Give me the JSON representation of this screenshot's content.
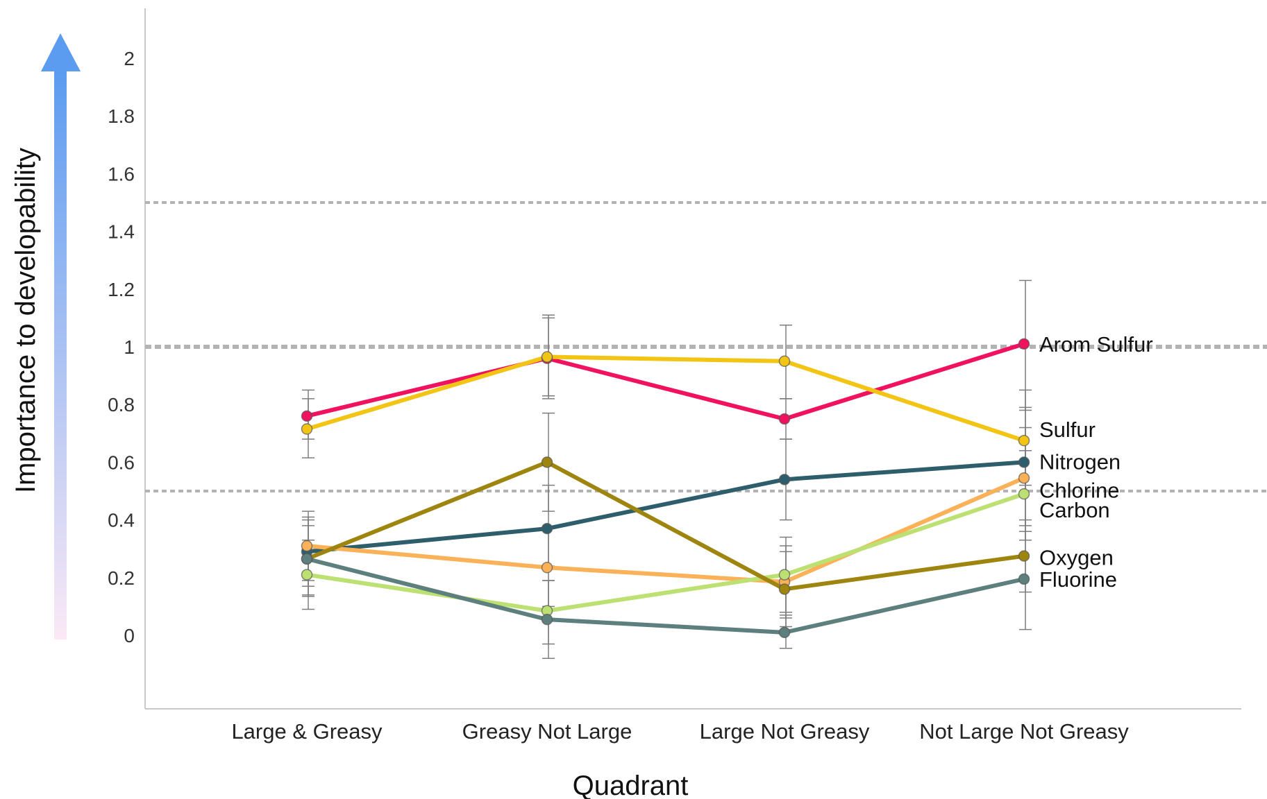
{
  "chart_data": {
    "type": "line",
    "xlabel": "Quadrant",
    "ylabel": "Importance to developability",
    "categories": [
      "Large & Greasy",
      "Greasy Not Large",
      "Large Not Greasy",
      "Not Large Not Greasy"
    ],
    "ylim": [
      -0.25,
      2.18
    ],
    "yticks": [
      0,
      0.2,
      0.4,
      0.6,
      0.8,
      1,
      1.2,
      1.4,
      1.6,
      1.8,
      2
    ],
    "ytick_labels": [
      "0",
      "0.2",
      "0.4",
      "0.6",
      "0.8",
      "1",
      "1.2",
      "1.4",
      "1.6",
      "1.8",
      "2"
    ],
    "reference_lines": [
      0.5,
      1.0,
      1.5
    ],
    "grid": false,
    "legend": "direct labels at right end of each line",
    "series": [
      {
        "name": "Arom Sulfur",
        "color": "#f0125f",
        "values": [
          0.76,
          0.96,
          0.75,
          1.01
        ],
        "err_low": [
          0.68,
          0.82,
          0.68,
          0.78
        ],
        "err_high": [
          0.85,
          1.1,
          0.82,
          1.23
        ]
      },
      {
        "name": "Sulfur",
        "color": "#f2c414",
        "values": [
          0.715,
          0.965,
          0.95,
          0.675
        ],
        "err_low": [
          0.615,
          0.83,
          0.82,
          0.52
        ],
        "err_high": [
          0.82,
          1.11,
          1.075,
          0.85
        ]
      },
      {
        "name": "Nitrogen",
        "color": "#2e5e6c",
        "values": [
          0.29,
          0.37,
          0.54,
          0.6
        ],
        "err_low": [
          0.17,
          0.24,
          0.4,
          0.38
        ],
        "err_high": [
          0.41,
          0.52,
          0.68,
          0.79
        ]
      },
      {
        "name": "Chlorine",
        "color": "#fbb157",
        "values": [
          0.31,
          0.235,
          0.185,
          0.545
        ],
        "err_low": [
          0.19,
          0.1,
          0.06,
          0.36
        ],
        "err_high": [
          0.43,
          0.37,
          0.31,
          0.72
        ]
      },
      {
        "name": "Carbon",
        "color": "#bde072",
        "values": [
          0.21,
          0.085,
          0.21,
          0.49
        ],
        "err_low": [
          0.09,
          -0.03,
          0.08,
          0.33
        ],
        "err_high": [
          0.33,
          0.19,
          0.34,
          0.64
        ]
      },
      {
        "name": "Oxygen",
        "color": "#9e8510",
        "values": [
          0.265,
          0.6,
          0.16,
          0.275
        ],
        "err_low": [
          0.14,
          0.43,
          0.03,
          0.15
        ],
        "err_high": [
          0.38,
          0.77,
          0.29,
          0.4
        ]
      },
      {
        "name": "Fluorine",
        "color": "#5d7f7d",
        "values": [
          0.265,
          0.055,
          0.01,
          0.195
        ],
        "err_low": [
          0.135,
          -0.08,
          -0.045,
          0.02
        ],
        "err_high": [
          0.4,
          0.19,
          0.07,
          0.36
        ]
      }
    ]
  },
  "colors": {
    "axis": "#c8c8c8",
    "reference_line": "#b3b3b3",
    "error_bar": "#7d7d7d",
    "arrow_top": "#5b9bf0",
    "arrow_bottom": "#fbe9f6"
  }
}
